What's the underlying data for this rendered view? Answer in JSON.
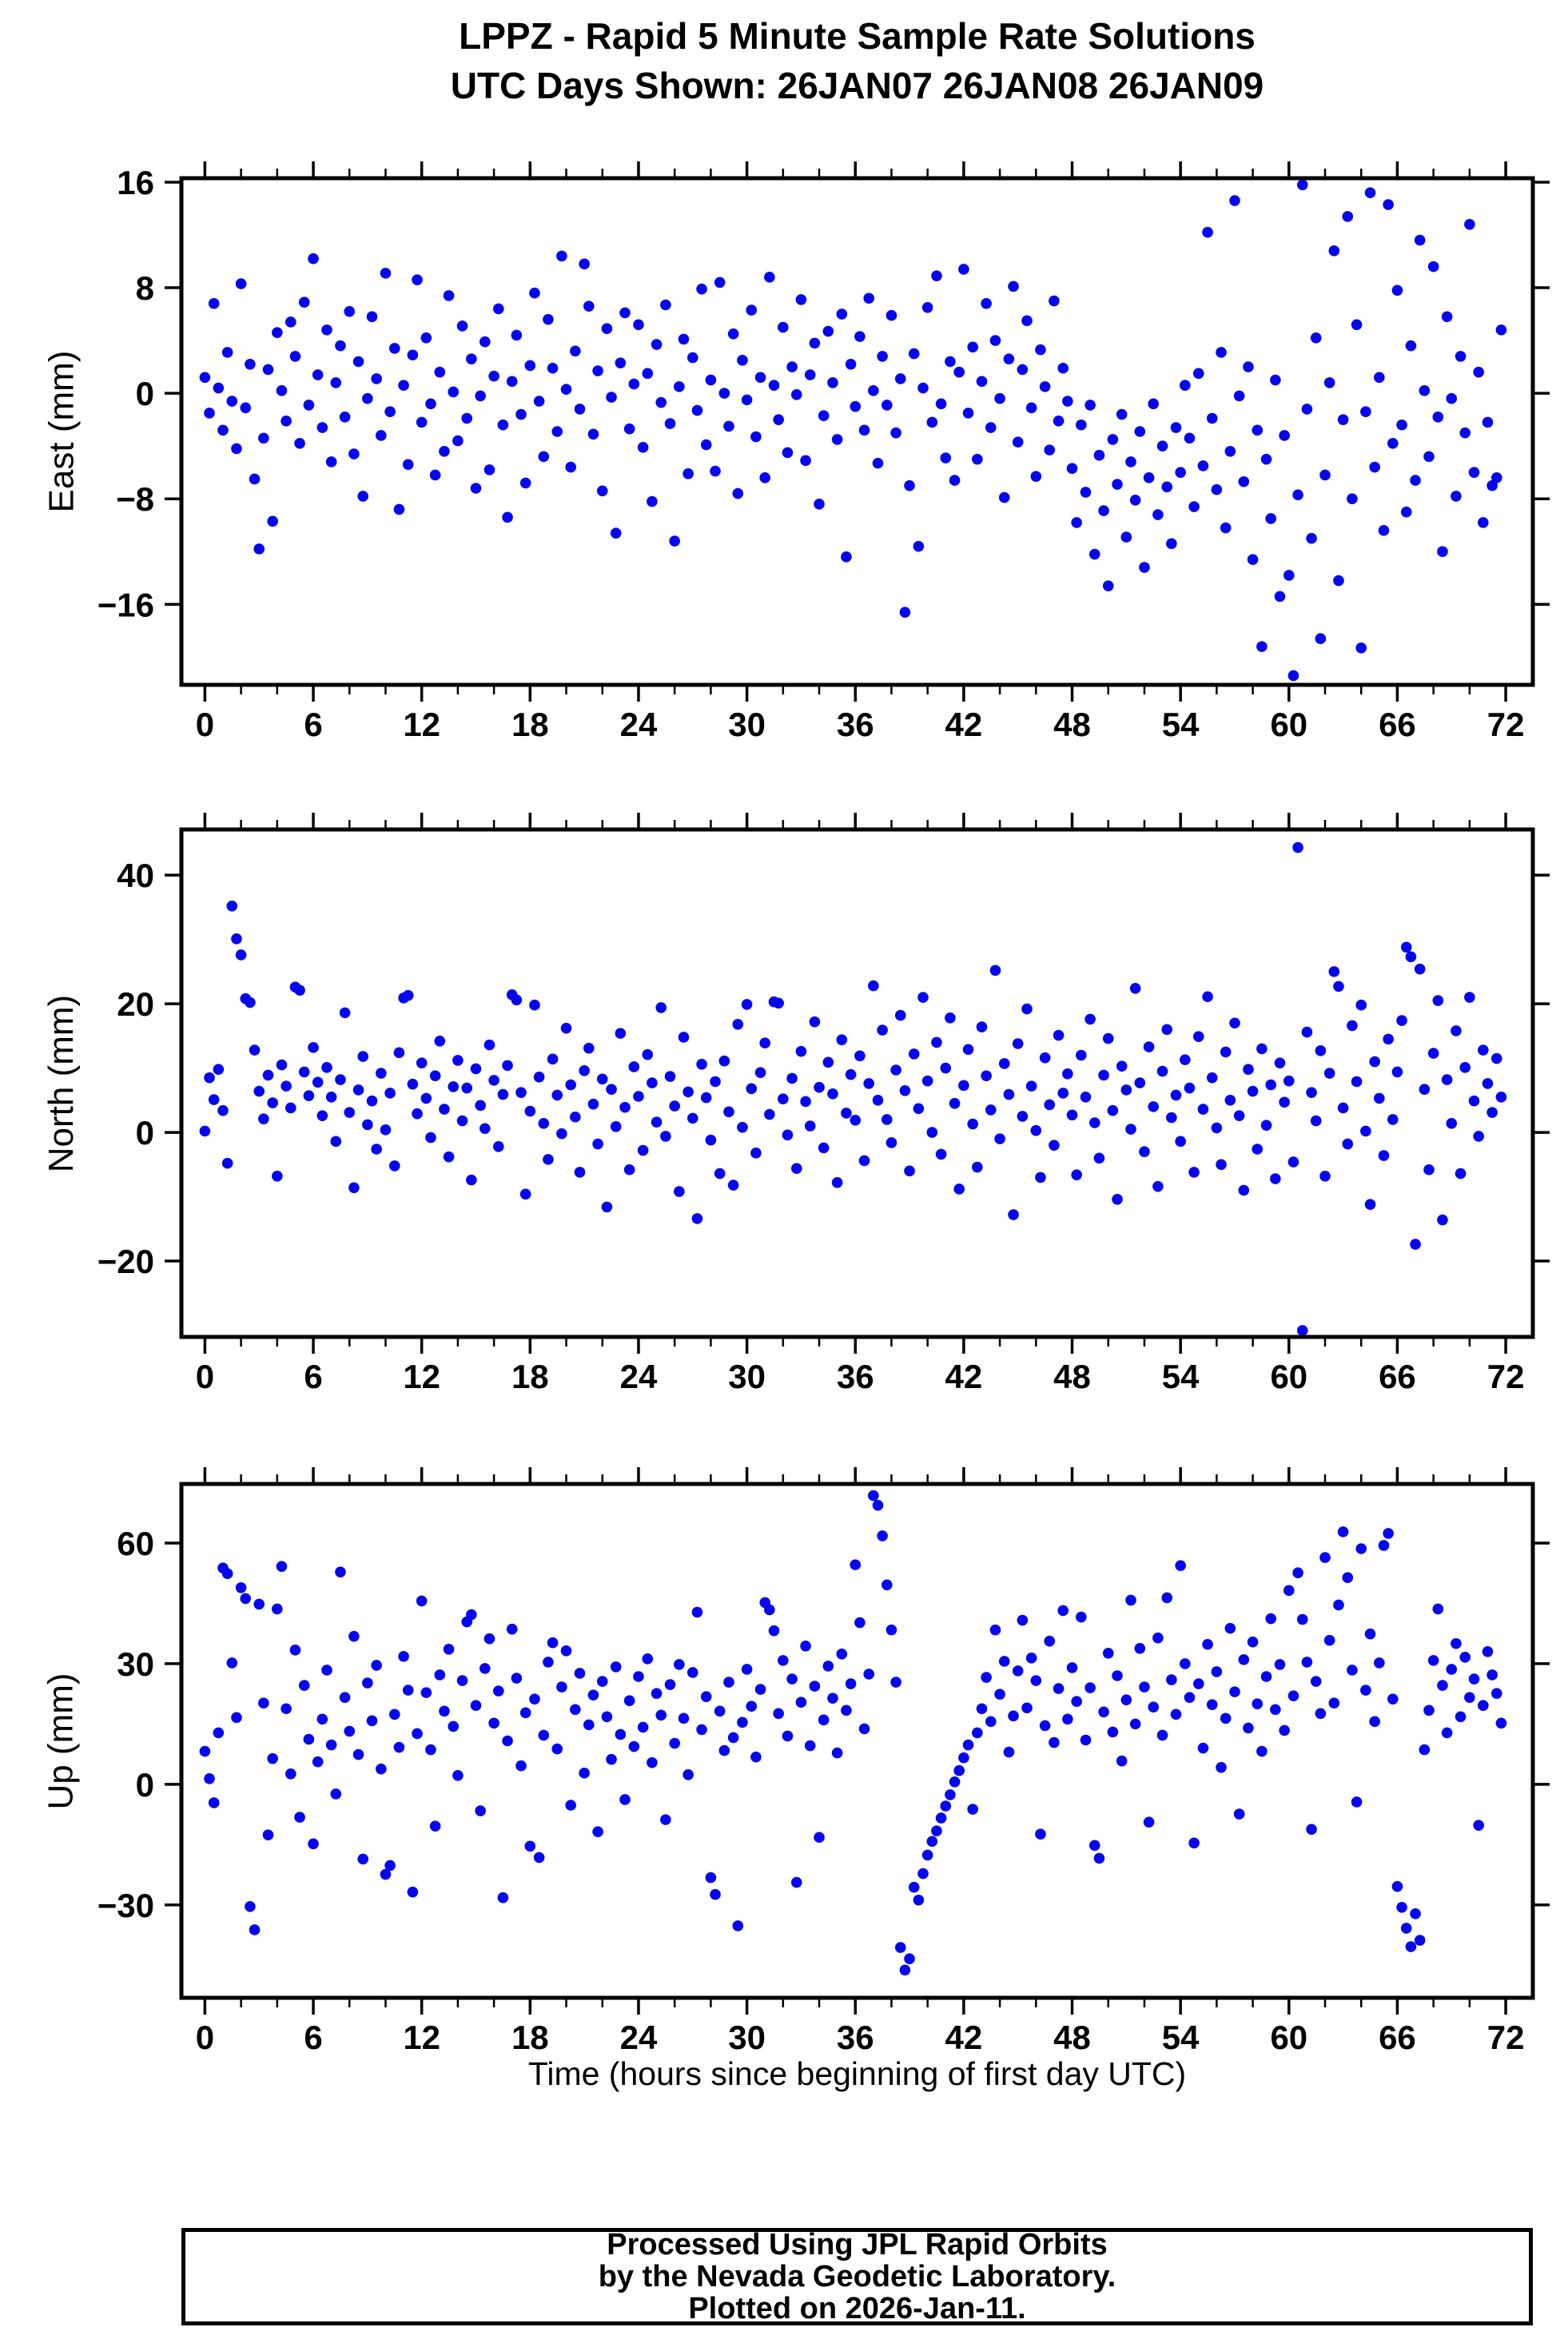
{
  "title": {
    "line1": "LPPZ - Rapid 5 Minute Sample Rate Solutions",
    "line2": "UTC Days Shown:  26JAN07 26JAN08 26JAN09"
  },
  "xlabel": "Time (hours since beginning of first day UTC)",
  "footer": {
    "line1": "Processed Using JPL Rapid Orbits",
    "line2": "by the Nevada Geodetic Laboratory.",
    "line3": "Plotted on 2026-Jan-11."
  },
  "point_color": "#0505F0",
  "frame_color": "#000000",
  "chart_data": [
    {
      "type": "scatter",
      "name": "east",
      "ylabel": "East (mm)",
      "marker": "filled-circle",
      "grid": false,
      "legend": "none",
      "xlim": [
        -1.3,
        73.5
      ],
      "ylim": [
        -22.1,
        16.3
      ],
      "x_major_ticks": [
        0,
        6,
        12,
        18,
        24,
        30,
        36,
        42,
        48,
        54,
        60,
        66,
        72
      ],
      "x_minor_step": 2,
      "y_major_ticks": [
        16,
        8,
        0,
        -8,
        -16
      ],
      "x_start": 0,
      "x_step": 0.25,
      "values": [
        1.2,
        -1.5,
        6.8,
        0.4,
        -2.8,
        3.1,
        -0.6,
        -4.2,
        8.3,
        -1.1,
        2.2,
        -6.5,
        -11.8,
        -3.4,
        1.8,
        -9.7,
        4.6,
        0.2,
        -2.1,
        5.4,
        2.8,
        -3.8,
        6.9,
        -0.9,
        10.2,
        1.4,
        -2.6,
        4.8,
        -5.2,
        0.8,
        3.6,
        -1.8,
        6.2,
        -4.6,
        2.4,
        -7.8,
        -0.4,
        5.8,
        1.1,
        -3.2,
        9.1,
        -1.4,
        3.4,
        -8.8,
        0.6,
        -5.4,
        2.9,
        8.6,
        -2.2,
        4.2,
        -0.8,
        -6.2,
        1.6,
        -4.4,
        7.4,
        0.1,
        -3.6,
        5.1,
        -1.9,
        2.6,
        -7.2,
        -0.2,
        3.9,
        -5.8,
        1.3,
        6.4,
        -2.4,
        -9.4,
        0.9,
        4.4,
        -1.6,
        -6.8,
        2.1,
        7.6,
        -0.6,
        -4.8,
        5.6,
        1.9,
        -2.9,
        10.4,
        0.3,
        -5.6,
        3.2,
        -1.2,
        9.8,
        6.6,
        -3.1,
        1.7,
        -7.4,
        4.9,
        -0.3,
        -10.6,
        2.3,
        6.1,
        -2.7,
        0.7,
        5.2,
        -4.1,
        1.5,
        -8.2,
        3.7,
        -0.7,
        6.7,
        -2.3,
        -11.2,
        0.5,
        4.1,
        -6.1,
        2.7,
        -1.3,
        7.9,
        -3.9,
        1.0,
        -5.9,
        8.4,
        0.0,
        -2.5,
        4.5,
        -7.6,
        2.5,
        -0.5,
        6.3,
        -3.3,
        1.2,
        -6.4,
        8.8,
        0.6,
        -2.0,
        5.0,
        -4.5,
        2.0,
        -0.1,
        7.1,
        -5.1,
        1.4,
        3.8,
        -8.4,
        -1.7,
        4.7,
        0.8,
        -3.5,
        6.0,
        -12.4,
        2.2,
        -1.0,
        4.3,
        -2.8,
        7.2,
        0.2,
        -5.3,
        2.8,
        -0.9,
        5.9,
        -3.0,
        1.1,
        -16.6,
        -7.0,
        3.0,
        -11.6,
        0.4,
        6.5,
        -2.2,
        8.9,
        -0.8,
        -4.9,
        2.4,
        -6.6,
        1.6,
        9.4,
        -1.5,
        3.5,
        -5.0,
        0.9,
        6.8,
        -2.6,
        4.0,
        -0.4,
        -7.9,
        2.6,
        8.1,
        -3.7,
        1.8,
        5.5,
        -1.1,
        -6.3,
        3.3,
        0.5,
        -4.3,
        7.0,
        -2.1,
        1.9,
        -0.6,
        -5.7,
        -9.8,
        -2.4,
        -7.5,
        -0.9,
        -12.2,
        -4.7,
        -8.9,
        -14.6,
        -3.5,
        -6.9,
        -1.6,
        -10.9,
        -5.2,
        -8.1,
        -2.9,
        -13.2,
        -6.4,
        -0.8,
        -9.2,
        -4.0,
        -7.1,
        -11.4,
        -2.6,
        -6.0,
        0.6,
        -3.4,
        -8.6,
        1.5,
        -5.5,
        12.2,
        -1.9,
        -7.3,
        3.1,
        -10.2,
        -4.4,
        14.6,
        -0.2,
        -6.7,
        2.0,
        -12.6,
        -2.8,
        -19.2,
        -5.0,
        -9.5,
        1.0,
        -15.4,
        -3.2,
        -13.8,
        -21.4,
        -7.7,
        15.8,
        -1.2,
        -11.0,
        4.2,
        -18.6,
        -6.2,
        0.8,
        10.8,
        -14.2,
        -2.0,
        13.4,
        -8.0,
        5.2,
        -19.3,
        -1.4,
        15.2,
        -5.6,
        1.2,
        -10.4,
        14.3,
        -3.8,
        7.8,
        -2.4,
        -9.0,
        3.6,
        -6.6,
        11.6,
        0.2,
        -4.8,
        9.6,
        -1.8,
        -12.0,
        5.8,
        -0.4,
        -7.8,
        2.8,
        -3.0,
        12.8,
        -6.0,
        1.6,
        -9.8,
        -2.2,
        -7.0,
        -6.4,
        4.8
      ]
    },
    {
      "type": "scatter",
      "name": "north",
      "ylabel": "North (mm)",
      "marker": "filled-circle",
      "grid": false,
      "legend": "none",
      "xlim": [
        -1.3,
        73.5
      ],
      "ylim": [
        -31.8,
        47.1
      ],
      "x_major_ticks": [
        0,
        6,
        12,
        18,
        24,
        30,
        36,
        42,
        48,
        54,
        60,
        66,
        72
      ],
      "x_minor_step": 2,
      "y_major_ticks": [
        40,
        20,
        0,
        -20
      ],
      "x_start": 0,
      "x_step": 0.25,
      "values": [
        0.2,
        8.5,
        5.1,
        9.8,
        3.4,
        -4.8,
        35.2,
        30.1,
        27.6,
        20.8,
        20.2,
        12.8,
        6.4,
        2.1,
        8.9,
        4.6,
        -6.8,
        10.5,
        7.2,
        3.8,
        22.6,
        22.1,
        9.4,
        5.7,
        13.2,
        7.8,
        2.6,
        10.1,
        5.5,
        -1.4,
        8.2,
        18.6,
        3.1,
        -8.6,
        6.6,
        11.8,
        1.2,
        4.9,
        -2.6,
        9.2,
        0.4,
        6.1,
        -5.2,
        12.4,
        20.9,
        21.3,
        7.5,
        2.9,
        10.8,
        5.3,
        -0.8,
        8.8,
        14.2,
        3.6,
        -3.8,
        7.1,
        11.2,
        1.8,
        6.9,
        -7.4,
        9.9,
        4.2,
        0.6,
        13.6,
        8.1,
        -2.2,
        5.9,
        10.4,
        21.4,
        20.6,
        6.2,
        -9.6,
        3.3,
        19.8,
        8.6,
        1.4,
        -4.2,
        11.4,
        5.8,
        -0.2,
        16.2,
        7.4,
        2.4,
        -6.2,
        9.6,
        13.1,
        4.4,
        -1.8,
        8.3,
        -11.6,
        6.7,
        0.9,
        15.4,
        3.9,
        -5.8,
        10.2,
        5.6,
        -2.8,
        12.1,
        7.7,
        1.6,
        19.4,
        -0.6,
        8.7,
        4.1,
        -9.2,
        14.8,
        6.3,
        2.2,
        -13.4,
        10.6,
        5.4,
        -1.2,
        7.9,
        -6.4,
        11.1,
        3.2,
        -8.2,
        16.8,
        0.8,
        19.9,
        6.8,
        -3.2,
        9.3,
        13.9,
        2.8,
        20.3,
        20.1,
        5.2,
        -0.4,
        8.4,
        -5.6,
        12.6,
        4.8,
        1.0,
        17.2,
        7.0,
        -2.4,
        10.9,
        6.0,
        -7.8,
        14.4,
        3.0,
        9.0,
        1.9,
        11.9,
        -4.4,
        7.6,
        22.8,
        5.0,
        15.9,
        2.0,
        -1.6,
        9.7,
        18.2,
        6.5,
        -6.0,
        12.2,
        3.7,
        21.0,
        8.0,
        0.0,
        14.0,
        -3.4,
        10.0,
        17.8,
        4.5,
        -8.8,
        7.3,
        12.9,
        1.3,
        -5.4,
        16.4,
        8.8,
        3.5,
        25.2,
        -1.0,
        10.7,
        5.9,
        -12.8,
        13.8,
        2.5,
        19.2,
        7.2,
        0.3,
        -7.0,
        11.6,
        4.3,
        -2.0,
        15.1,
        6.1,
        9.1,
        2.7,
        -6.6,
        12.0,
        5.5,
        17.6,
        1.5,
        -4.0,
        8.9,
        14.6,
        3.4,
        -10.4,
        10.3,
        6.6,
        0.5,
        22.4,
        7.7,
        -3.0,
        13.3,
        4.0,
        -8.4,
        9.5,
        16.0,
        2.3,
        5.8,
        -1.4,
        11.3,
        6.9,
        -6.2,
        14.9,
        3.6,
        21.1,
        8.5,
        0.7,
        -5.0,
        12.5,
        5.0,
        17.0,
        2.6,
        -9.0,
        9.8,
        6.4,
        -2.6,
        13.0,
        1.1,
        7.4,
        -7.2,
        10.8,
        4.7,
        8.0,
        -4.6,
        44.3,
        -30.8,
        15.6,
        6.2,
        1.8,
        12.7,
        -6.8,
        9.2,
        25.0,
        22.7,
        3.8,
        -1.8,
        16.6,
        7.9,
        19.8,
        0.2,
        -11.2,
        11.0,
        5.3,
        -3.6,
        14.5,
        2.0,
        9.4,
        17.4,
        28.8,
        27.3,
        -17.4,
        25.4,
        6.7,
        -5.8,
        12.3,
        20.5,
        -13.6,
        8.2,
        1.4,
        15.8,
        -6.4,
        10.1,
        21.0,
        4.9,
        -0.6,
        12.8,
        7.6,
        3.1,
        11.5,
        5.5
      ]
    },
    {
      "type": "scatter",
      "name": "up",
      "ylabel": "Up (mm)",
      "marker": "filled-circle",
      "grid": false,
      "legend": "none",
      "xlim": [
        -1.3,
        73.5
      ],
      "ylim": [
        -53.1,
        74.7
      ],
      "x_major_ticks": [
        0,
        6,
        12,
        18,
        24,
        30,
        36,
        42,
        48,
        54,
        60,
        66,
        72
      ],
      "x_minor_step": 2,
      "y_major_ticks": [
        60,
        30,
        0,
        -30
      ],
      "x_start": 0,
      "x_step": 0.25,
      "values": [
        8.2,
        1.4,
        -4.6,
        12.8,
        53.8,
        52.4,
        30.2,
        16.6,
        48.9,
        46.2,
        -30.4,
        -36.2,
        44.8,
        20.2,
        -12.6,
        6.4,
        43.6,
        54.2,
        18.8,
        2.6,
        33.4,
        -8.2,
        24.6,
        11.2,
        -14.8,
        5.6,
        16.2,
        28.4,
        9.8,
        -2.4,
        52.8,
        21.6,
        13.2,
        36.8,
        7.4,
        -18.6,
        25.2,
        15.8,
        29.6,
        3.8,
        -22.4,
        -20.2,
        17.4,
        9.2,
        31.8,
        23.4,
        -26.8,
        12.6,
        45.6,
        22.8,
        8.6,
        -10.4,
        27.2,
        18.2,
        33.6,
        14.4,
        2.2,
        25.8,
        40.4,
        42.2,
        19.6,
        -6.6,
        28.8,
        36.2,
        15.2,
        23.2,
        -28.2,
        10.8,
        38.6,
        26.4,
        4.6,
        17.8,
        -15.4,
        21.2,
        -18.2,
        12.2,
        30.4,
        35.2,
        8.8,
        24.2,
        33.2,
        -5.2,
        18.6,
        27.6,
        2.8,
        14.8,
        22.2,
        -11.8,
        25.6,
        16.8,
        6.2,
        29.2,
        12.4,
        -3.8,
        20.8,
        9.4,
        26.8,
        14.2,
        31.2,
        5.4,
        22.6,
        17.2,
        -8.8,
        24.8,
        10.2,
        29.8,
        16.4,
        2.4,
        27.8,
        42.8,
        13.6,
        21.8,
        -23.2,
        -27.4,
        18.2,
        8.4,
        25.4,
        11.6,
        -35.2,
        15.4,
        28.6,
        19.4,
        6.8,
        23.6,
        45.2,
        43.4,
        38.2,
        17.6,
        30.8,
        12.0,
        26.2,
        -24.4,
        20.4,
        34.4,
        9.6,
        24.4,
        -13.2,
        16.0,
        29.4,
        21.4,
        7.8,
        32.4,
        18.4,
        25.0,
        54.6,
        40.2,
        13.8,
        27.4,
        71.8,
        69.4,
        61.8,
        49.6,
        38.4,
        25.4,
        -40.6,
        -46.2,
        -43.4,
        -25.6,
        -28.8,
        -22.2,
        -17.6,
        -14.2,
        -11.6,
        -8.4,
        -5.4,
        -2.6,
        0.6,
        3.4,
        6.6,
        9.8,
        -6.2,
        12.8,
        18.8,
        26.6,
        15.6,
        38.4,
        22.4,
        30.6,
        8.0,
        17.0,
        28.2,
        40.8,
        19.0,
        31.4,
        25.8,
        -12.4,
        14.6,
        35.6,
        10.4,
        23.8,
        43.2,
        16.2,
        29.0,
        20.6,
        41.6,
        11.0,
        24.0,
        -15.2,
        -18.4,
        18.0,
        32.6,
        13.0,
        27.0,
        5.8,
        21.0,
        45.8,
        15.0,
        33.8,
        24.2,
        -9.4,
        19.2,
        36.4,
        12.2,
        46.4,
        26.0,
        17.4,
        54.4,
        30.0,
        21.6,
        -14.6,
        25.0,
        9.0,
        34.8,
        19.8,
        28.0,
        4.2,
        16.4,
        38.8,
        23.0,
        -7.4,
        31.0,
        14.0,
        35.4,
        20.0,
        8.2,
        26.8,
        41.2,
        18.6,
        29.8,
        13.4,
        48.2,
        22.0,
        52.6,
        41.0,
        30.4,
        -11.2,
        25.6,
        17.6,
        56.4,
        35.8,
        20.2,
        44.6,
        62.8,
        51.4,
        28.4,
        -4.4,
        58.6,
        23.4,
        37.4,
        15.6,
        30.2,
        59.4,
        62.4,
        21.2,
        -25.4,
        -30.6,
        -35.8,
        -40.4,
        -32.2,
        -38.8,
        8.6,
        18.4,
        30.8,
        43.6,
        24.6,
        12.8,
        28.6,
        35.0,
        16.8,
        31.6,
        21.6,
        26.2,
        -10.2,
        19.6,
        33.0,
        27.2,
        22.6,
        15.2
      ]
    }
  ]
}
